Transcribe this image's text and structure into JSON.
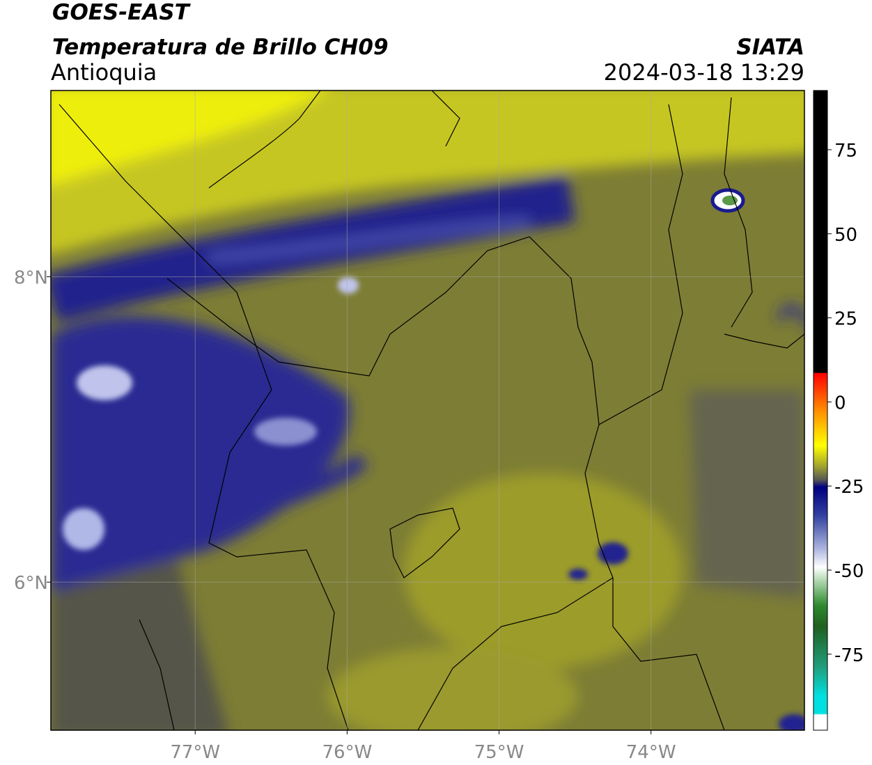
{
  "header": {
    "title": "GOES-EAST",
    "subtitle": "Temperatura de Brillo CH09",
    "region": "Antioquia",
    "source": "SIATA",
    "datetime": "2024-03-18 13:29"
  },
  "map": {
    "xlim": [
      -77.95,
      -72.99
    ],
    "ylim": [
      5.03,
      9.22
    ],
    "xticks": [
      {
        "value": -77,
        "label": "77°W"
      },
      {
        "value": -76,
        "label": "76°W"
      },
      {
        "value": -75,
        "label": "75°W"
      },
      {
        "value": -74,
        "label": "74°W"
      }
    ],
    "yticks": [
      {
        "value": 8,
        "label": "8°N"
      },
      {
        "value": 6,
        "label": "6°N"
      }
    ],
    "grid": true
  },
  "colorbar": {
    "lim": [
      -97.6,
      92.6
    ],
    "ticks": [
      75,
      50,
      25,
      0,
      -25,
      -50,
      -75
    ]
  }
}
